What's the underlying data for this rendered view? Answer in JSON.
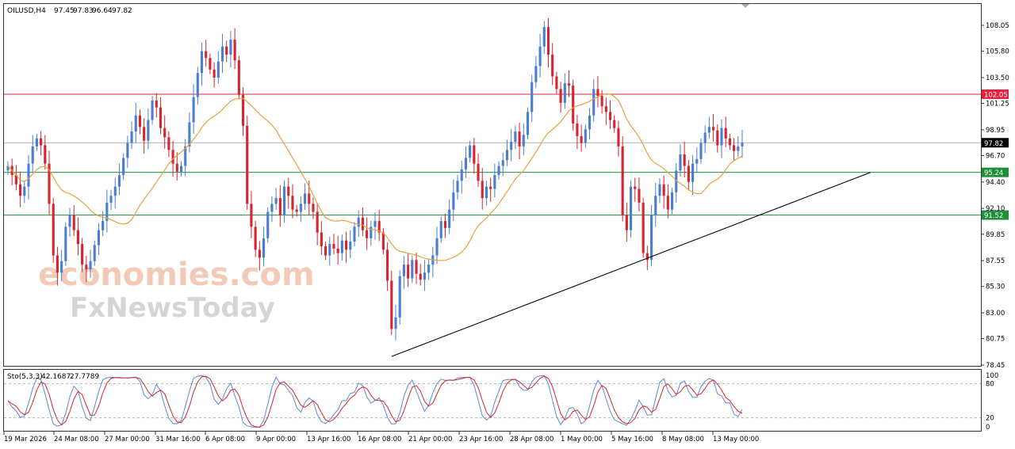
{
  "chart_data": [
    {
      "type": "candlestick",
      "info": {
        "symbol": "OILUSD,H4",
        "open": "97.45",
        "high": "97.83",
        "low": "96.64",
        "close": "97.82"
      },
      "ylim": [
        78.45,
        109.5
      ],
      "y_ticks": [
        "108.05",
        "105.80",
        "103.50",
        "101.25",
        "98.95",
        "96.70",
        "94.40",
        "92.10",
        "89.85",
        "87.55",
        "85.30",
        "83.00",
        "80.75",
        "78.45"
      ],
      "x_ticks": [
        "19 Mar 2026",
        "24 Mar 08:00",
        "27 Mar 00:00",
        "31 Mar 16:00",
        "6 Apr 08:00",
        "9 Apr 00:00",
        "13 Apr 16:00",
        "16 Apr 08:00",
        "21 Apr 00:00",
        "23 Apr 16:00",
        "28 Apr 08:00",
        "1 May 00:00",
        "5 May 16:00",
        "8 May 08:00",
        "13 May 00:00"
      ],
      "levels": [
        {
          "value": 102.05,
          "label": "102.05",
          "color": "#e8203a"
        },
        {
          "value": 97.82,
          "label": "97.82",
          "color": "#000000"
        },
        {
          "value": 95.24,
          "label": "95.24",
          "color": "#1f8f3a"
        },
        {
          "value": 91.52,
          "label": "91.52",
          "color": "#1f8f3a"
        }
      ],
      "trendline": {
        "start": {
          "date": "16 Apr 08:00",
          "value": 79.2
        },
        "end": {
          "date": "16 May",
          "value": 95.24
        }
      },
      "moving_average_color": "#e8a13a",
      "bull_color": "#4a7fd0",
      "bear_color": "#d6252e",
      "candles_closes": [
        95.8,
        95.0,
        94.2,
        93.2,
        94.0,
        96.0,
        97.5,
        98.2,
        97.6,
        96.0,
        92.5,
        88.0,
        86.5,
        87.5,
        90.5,
        91.5,
        90.2,
        89.0,
        87.2,
        86.8,
        87.5,
        88.9,
        90.2,
        91.0,
        92.6,
        93.2,
        94.0,
        95.0,
        96.5,
        97.8,
        98.8,
        100.2,
        99.2,
        98.0,
        99.8,
        101.5,
        100.9,
        99.1,
        98.3,
        97.2,
        96.0,
        95.3,
        95.8,
        97.5,
        99.6,
        101.8,
        103.9,
        105.8,
        105.2,
        104.2,
        103.5,
        104.9,
        106.2,
        105.5,
        106.8,
        105.0,
        102.0,
        99.3,
        92.5,
        90.5,
        88.5,
        87.8,
        89.5,
        91.8,
        92.5,
        93.0,
        91.5,
        94.0,
        93.2,
        92.0,
        91.8,
        92.5,
        93.4,
        92.5,
        91.8,
        90.0,
        88.8,
        88.0,
        89.0,
        88.6,
        88.2,
        89.3,
        88.5,
        89.2,
        90.5,
        91.3,
        90.2,
        89.5,
        90.5,
        91.0,
        90.0,
        88.5,
        85.8,
        81.6,
        82.6,
        86.2,
        87.2,
        86.0,
        87.6,
        86.4,
        85.9,
        86.5,
        87.2,
        88.0,
        89.5,
        91.0,
        90.4,
        92.0,
        93.5,
        94.5,
        95.5,
        96.5,
        97.6,
        96.0,
        94.5,
        93.0,
        94.0,
        93.8,
        95.0,
        95.8,
        96.3,
        97.2,
        97.9,
        98.8,
        97.5,
        98.5,
        100.5,
        103.1,
        104.5,
        106.2,
        107.9,
        105.5,
        103.6,
        102.5,
        101.3,
        103.0,
        102.8,
        99.5,
        98.4,
        97.8,
        99.0,
        100.2,
        102.5,
        101.9,
        101.0,
        100.5,
        99.8,
        99.1,
        97.5,
        91.5,
        90.2,
        94.0,
        93.8,
        92.6,
        88.2,
        87.6,
        91.5,
        93.2,
        94.2,
        93.2,
        92.0,
        93.5,
        95.4,
        96.8,
        95.8,
        94.4,
        96.0,
        96.4,
        97.8,
        98.7,
        99.2,
        98.9,
        97.6,
        99.1,
        98.2,
        97.6,
        97.1,
        97.5,
        97.82
      ],
      "stochastic": {
        "label": "Sto(5,3,3)",
        "main": "42.1687",
        "signal": "27.7789",
        "levels": [
          "80",
          "20"
        ],
        "scale": [
          "100",
          "0"
        ],
        "main_color": "#5b88d6",
        "signal_color": "#d6252e"
      }
    }
  ],
  "watermark": {
    "line1": "economies.com",
    "line2": "FxNewsToday"
  }
}
